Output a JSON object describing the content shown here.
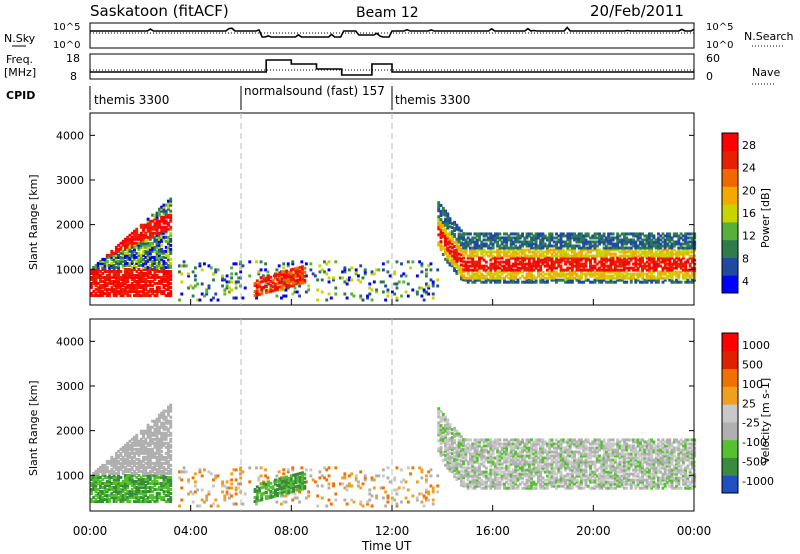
{
  "header": {
    "station": "Saskatoon (fitACF)",
    "beam": "Beam 12",
    "date": "20/Feb/2011"
  },
  "noise_panel": {
    "left_label": "N.Sky",
    "right_label": "N.Search",
    "left_ticks": [
      "10^5",
      "10^0"
    ],
    "right_ticks": [
      "10^5",
      "10^0"
    ]
  },
  "freq_panel": {
    "left_label_1": "Freq.",
    "left_label_2": "[MHz]",
    "left_ticks": [
      "18",
      "8"
    ],
    "right_label": "Nave",
    "right_ticks": [
      "60",
      "0"
    ]
  },
  "cpid": {
    "label": "CPID",
    "segments": [
      {
        "start_hour": 0,
        "name": "themis 3300"
      },
      {
        "start_hour": 6,
        "name": "normalsound (fast) 157"
      },
      {
        "start_hour": 12,
        "name": "themis 3300"
      }
    ]
  },
  "colors": {
    "power_scale": [
      "#0000ff",
      "#1f4aa0",
      "#2d7d4a",
      "#55b13a",
      "#c8d400",
      "#f5a800",
      "#f06800",
      "#e62000",
      "#ff0000"
    ],
    "velocity_scale": [
      "#2050c0",
      "#3a8a40",
      "#55c030",
      "#b0b0b0",
      "#c8c8c8",
      "#f0a020",
      "#f07000",
      "#e02000",
      "#ff0000"
    ]
  },
  "chart_data": [
    {
      "type": "heatmap",
      "title": "Power",
      "xlabel": "Time UT",
      "ylabel": "Slant Range [km]",
      "colorbar_label": "Power [dB]",
      "colorbar_ticks": [
        "28",
        "24",
        "20",
        "16",
        "12",
        "8",
        "4"
      ],
      "xlim": [
        0,
        24
      ],
      "ylim": [
        200,
        4500
      ],
      "yticks": [
        1000,
        2000,
        3000,
        4000
      ],
      "grid": false,
      "scatter_bands": [
        {
          "t": [
            0,
            3
          ],
          "r_low": 400,
          "r_high": 2500,
          "peak": 28
        },
        {
          "t": [
            14,
            24
          ],
          "r_low": 800,
          "r_high": 2000,
          "peak": 28
        },
        {
          "t": [
            7,
            8
          ],
          "r_low": 400,
          "r_high": 900,
          "peak": 28
        }
      ]
    },
    {
      "type": "heatmap",
      "title": "Velocity",
      "xlabel": "Time UT",
      "ylabel": "Slant Range [km]",
      "colorbar_label": "Velocity [m s-1]",
      "colorbar_ticks": [
        "1000",
        "500",
        "100",
        "25",
        "-25",
        "-100",
        "-500",
        "-1000"
      ],
      "xlim": [
        0,
        24
      ],
      "ylim": [
        200,
        4500
      ],
      "yticks": [
        1000,
        2000,
        3000,
        4000
      ],
      "grid": false
    }
  ],
  "x_axis": {
    "ticks": [
      "00:00",
      "04:00",
      "08:00",
      "12:00",
      "16:00",
      "20:00",
      "00:00"
    ],
    "label": "Time UT"
  }
}
